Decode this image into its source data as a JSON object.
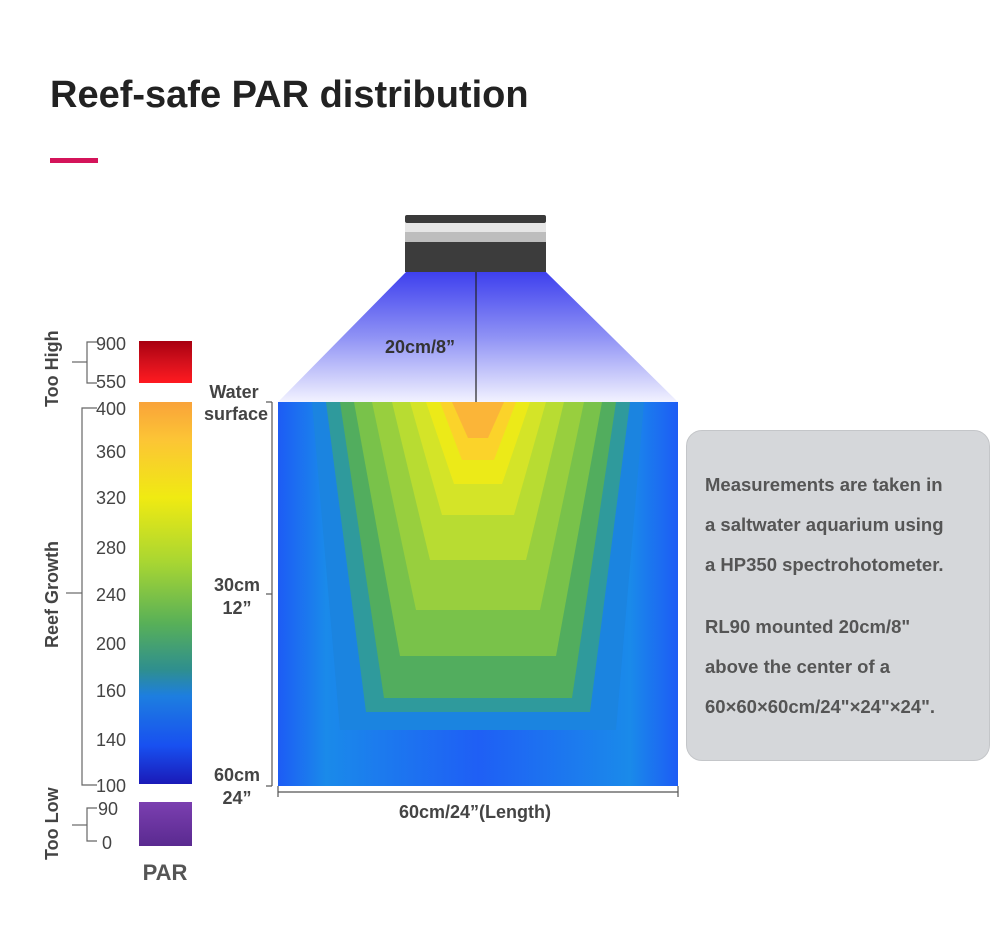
{
  "title": "Reef-safe PAR distribution",
  "colors": {
    "accent": "#d4145a",
    "too_high": "#e0101e",
    "too_low": "#7a35a8"
  },
  "scale": {
    "unit_label": "PAR",
    "zones": [
      {
        "name": "Too High",
        "ticks": [
          "900",
          "550"
        ]
      },
      {
        "name": "Reef Growth",
        "ticks": [
          "400",
          "360",
          "320",
          "280",
          "240",
          "200",
          "160",
          "140",
          "100"
        ]
      },
      {
        "name": "Too Low",
        "ticks": [
          "90",
          "0"
        ]
      }
    ]
  },
  "tank": {
    "distance_label": "20cm/8”",
    "water_surface": [
      "Water",
      "surface"
    ],
    "mid_depth": [
      "30cm",
      "12”"
    ],
    "bottom_depth": [
      "60cm",
      "24”"
    ],
    "length_label": "60cm/24”(Length)"
  },
  "info": {
    "paragraph1": [
      "Measurements are taken in",
      "a saltwater aquarium using",
      "a HP350 spectrohotometer."
    ],
    "paragraph2": [
      "RL90 mounted 20cm/8\"",
      "above the center of a",
      "60×60×60cm/24\"×24\"×24\"."
    ]
  }
}
